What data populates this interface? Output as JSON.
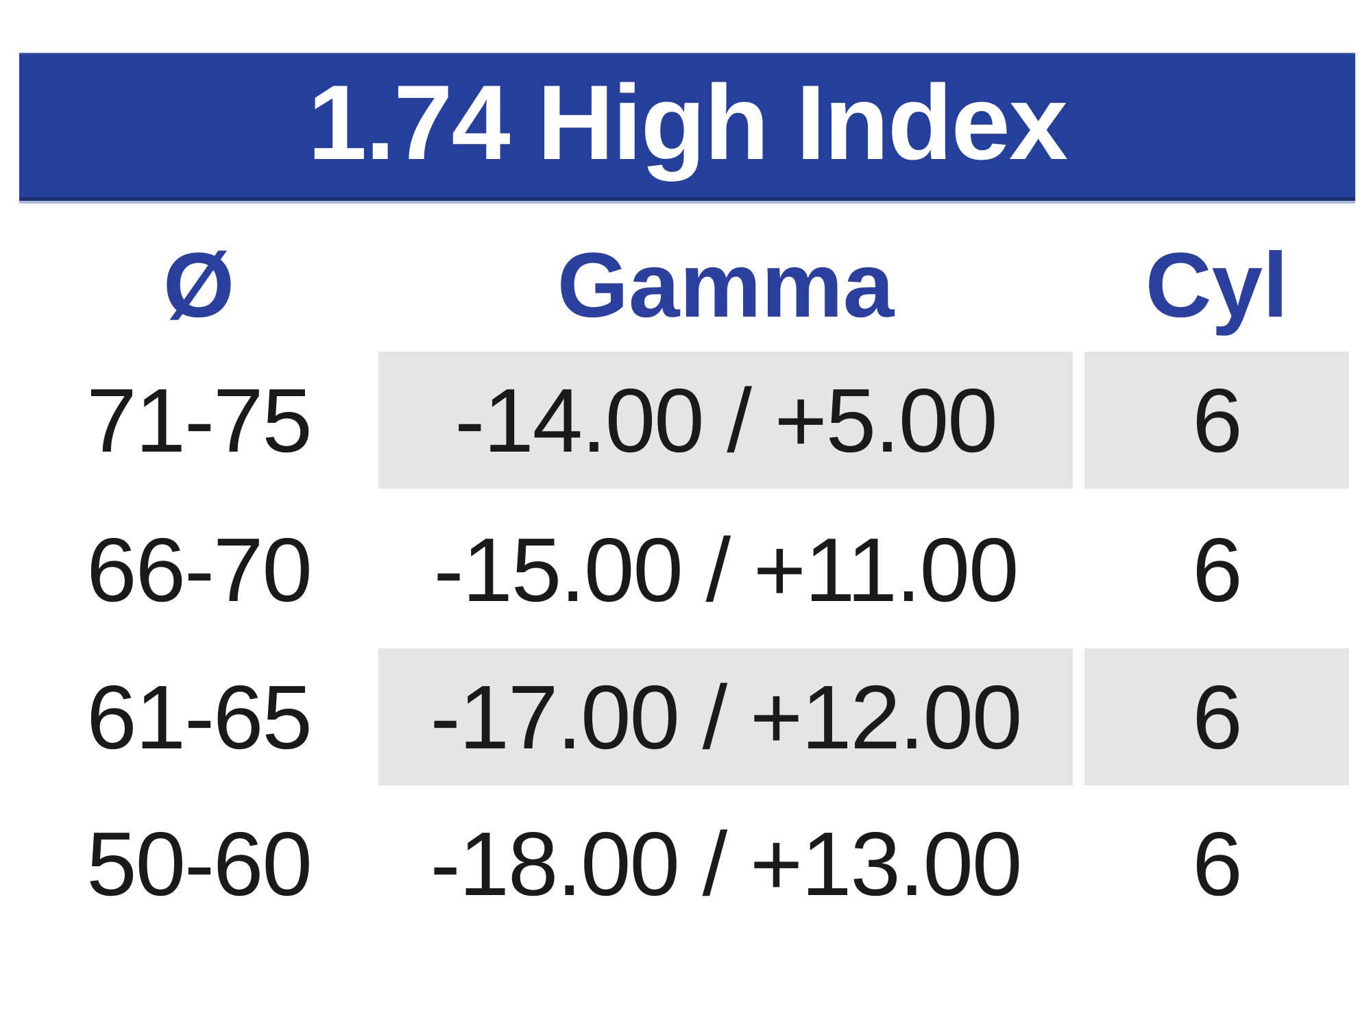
{
  "header": {
    "title": "1.74 High Index"
  },
  "table": {
    "columns": [
      {
        "key": "diameter",
        "label": "Ø"
      },
      {
        "key": "gamma",
        "label": "Gamma"
      },
      {
        "key": "cyl",
        "label": "Cyl"
      }
    ],
    "rows": [
      {
        "diameter": "71-75",
        "gamma": "-14.00 / +5.00",
        "cyl": "6",
        "shaded": true
      },
      {
        "diameter": "66-70",
        "gamma": "-15.00 / +11.00",
        "cyl": "6",
        "shaded": false
      },
      {
        "diameter": "61-65",
        "gamma": "-17.00 / +12.00",
        "cyl": "6",
        "shaded": true
      },
      {
        "diameter": "50-60",
        "gamma": "-18.00 / +13.00",
        "cyl": "6",
        "shaded": false
      }
    ]
  },
  "chart_data": {
    "type": "table",
    "title": "1.74 High Index",
    "columns": [
      "Ø",
      "Gamma",
      "Cyl"
    ],
    "rows": [
      [
        "71-75",
        "-14.00 / +5.00",
        "6"
      ],
      [
        "66-70",
        "-15.00 / +11.00",
        "6"
      ],
      [
        "61-65",
        "-17.00 / +12.00",
        "6"
      ],
      [
        "50-60",
        "-18.00 / +13.00",
        "6"
      ]
    ],
    "layout_hints": {
      "shaded_row_indices": [
        0,
        2
      ],
      "header_banner": true
    }
  },
  "colors": {
    "banner_blue": "#243f9c",
    "banner_text": "#ffffff",
    "banner_underline": "#a9b8dc",
    "header_text_blue": "#2b3f9e",
    "row_shade_gray": "#e5e5e5",
    "data_text": "#1a1a1a",
    "background": "#ffffff"
  }
}
